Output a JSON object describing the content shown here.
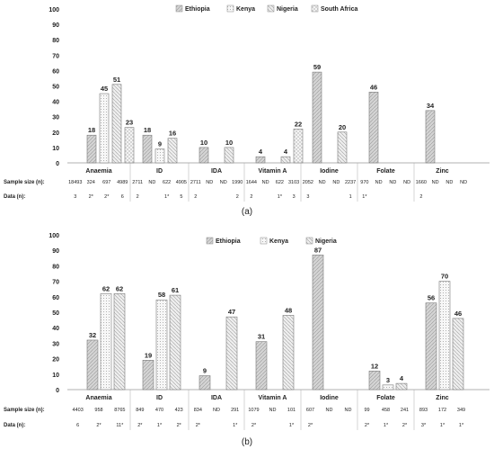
{
  "colors": {
    "ethiopia": "#d0d0d0",
    "kenya": "#f4f4f4",
    "nigeria": "#dcdcdc",
    "south_africa": "#ececec",
    "axis": "#999999",
    "text": "#222222"
  },
  "chart_data": [
    {
      "type": "bar",
      "caption": "(a)",
      "legend_position": "top-center",
      "legend": [
        "Ethiopia",
        "Kenya",
        "Nigeria",
        "South Africa"
      ],
      "ylim": [
        0,
        100
      ],
      "yticks": [
        "0",
        "10",
        "20",
        "30",
        "40",
        "50",
        "60",
        "70",
        "80",
        "90",
        "100"
      ],
      "row_labels": {
        "sample": "Sample size (n):",
        "data": "Data (n):"
      },
      "categories": [
        "Anaemia",
        "ID",
        "IDA",
        "Vitamin A",
        "Iodine",
        "Folate",
        "Zinc"
      ],
      "series": [
        {
          "name": "Ethiopia",
          "values": [
            18,
            18,
            10,
            4,
            59,
            46,
            34
          ]
        },
        {
          "name": "Kenya",
          "values": [
            45,
            9,
            null,
            null,
            null,
            null,
            null
          ]
        },
        {
          "name": "Nigeria",
          "values": [
            51,
            16,
            10,
            4,
            20,
            null,
            null
          ]
        },
        {
          "name": "South Africa",
          "values": [
            23,
            null,
            null,
            22,
            null,
            null,
            null
          ]
        }
      ],
      "value_labels": [
        [
          "18",
          "45",
          "51",
          "23"
        ],
        [
          "18",
          "9",
          "16",
          ""
        ],
        [
          "10",
          "",
          "10",
          ""
        ],
        [
          "4",
          "",
          "4",
          "22"
        ],
        [
          "59",
          "",
          "20",
          ""
        ],
        [
          "46",
          "",
          "",
          ""
        ],
        [
          "34",
          "",
          "",
          ""
        ]
      ],
      "sample_size": [
        [
          "18493",
          "324",
          "697",
          "4989"
        ],
        [
          "2711",
          "ND",
          "622",
          "4905"
        ],
        [
          "2711",
          "ND",
          "ND",
          "1990"
        ],
        [
          "1644",
          "ND",
          "622",
          "3103"
        ],
        [
          "2052",
          "ND",
          "ND",
          "2237"
        ],
        [
          "970",
          "ND",
          "ND",
          "ND"
        ],
        [
          "1660",
          "ND",
          "ND",
          "ND"
        ]
      ],
      "data_n": [
        [
          "3",
          "2*",
          "2*",
          "6"
        ],
        [
          "2",
          "",
          "1*",
          "5"
        ],
        [
          "2",
          "",
          "",
          "2"
        ],
        [
          "2",
          "",
          "1*",
          "3"
        ],
        [
          "3",
          "",
          "",
          "1"
        ],
        [
          "1*",
          "",
          "",
          ""
        ],
        [
          "2",
          "",
          "",
          ""
        ]
      ]
    },
    {
      "type": "bar",
      "caption": "(b)",
      "legend_position": "top-center",
      "legend": [
        "Ethiopia",
        "Kenya",
        "Nigeria"
      ],
      "ylim": [
        0,
        100
      ],
      "yticks": [
        "0",
        "10",
        "20",
        "30",
        "40",
        "50",
        "60",
        "70",
        "80",
        "90",
        "100"
      ],
      "row_labels": {
        "sample": "Sample size (n):",
        "data": "Data (n):"
      },
      "categories": [
        "Anaemia",
        "ID",
        "IDA",
        "Vitamin A",
        "Iodine",
        "Folate",
        "Zinc"
      ],
      "series": [
        {
          "name": "Ethiopia",
          "values": [
            32,
            19,
            9,
            31,
            87,
            12,
            56
          ]
        },
        {
          "name": "Kenya",
          "values": [
            62,
            58,
            null,
            null,
            null,
            3,
            70
          ]
        },
        {
          "name": "Nigeria",
          "values": [
            62,
            61,
            47,
            48,
            null,
            4,
            46
          ]
        }
      ],
      "value_labels": [
        [
          "32",
          "62",
          "62"
        ],
        [
          "19",
          "58",
          "61"
        ],
        [
          "9",
          "",
          "47"
        ],
        [
          "31",
          "",
          "48"
        ],
        [
          "87",
          "",
          ""
        ],
        [
          "12",
          "3",
          "4"
        ],
        [
          "56",
          "70",
          "46"
        ]
      ],
      "sample_size": [
        [
          "4403",
          "958",
          "8765"
        ],
        [
          "849",
          "470",
          "423"
        ],
        [
          "834",
          "ND",
          "291"
        ],
        [
          "1079",
          "ND",
          "101"
        ],
        [
          "607",
          "ND",
          "ND"
        ],
        [
          "99",
          "458",
          "241"
        ],
        [
          "893",
          "172",
          "349"
        ]
      ],
      "data_n": [
        [
          "6",
          "2*",
          "11*"
        ],
        [
          "2*",
          "1*",
          "2*"
        ],
        [
          "2*",
          "",
          "1*"
        ],
        [
          "2*",
          "",
          "1*"
        ],
        [
          "2*",
          "",
          ""
        ],
        [
          "2*",
          "1*",
          "2*"
        ],
        [
          "3*",
          "1*",
          "1*"
        ]
      ]
    }
  ]
}
